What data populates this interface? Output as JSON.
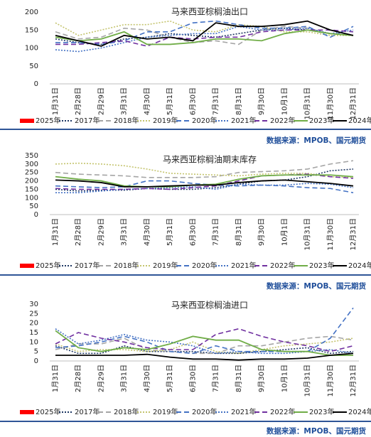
{
  "chart_data": [
    {
      "type": "line",
      "title": "马来西亚棕榈油出口",
      "source": "数据来源：MPOB、国元期货",
      "categories": [
        "1月31日",
        "2月28日",
        "2月29日",
        "3月31日",
        "4月30日",
        "5月31日",
        "6月30日",
        "7月31日",
        "8月31日",
        "9月30日",
        "10月1日",
        "10月31日",
        "11月30日",
        "12月31日"
      ],
      "ylim": [
        0,
        200
      ],
      "yticks": [
        0,
        50,
        100,
        150,
        200
      ],
      "series": [
        {
          "name": "2025年",
          "color": "#ff0000",
          "dash": "solid",
          "values": [
            null,
            null,
            null,
            null,
            null,
            null,
            null,
            null,
            null,
            null,
            null,
            null,
            null,
            null
          ]
        },
        {
          "name": "2017年",
          "color": "#1f3864",
          "dash": "dotted",
          "values": [
            125,
            115,
            110,
            125,
            130,
            140,
            135,
            130,
            140,
            150,
            155,
            150,
            140,
            135
          ]
        },
        {
          "name": "2018年",
          "color": "#a5a5a5",
          "dash": "dashed",
          "values": [
            145,
            125,
            130,
            155,
            150,
            130,
            115,
            120,
            110,
            150,
            160,
            155,
            140,
            135
          ]
        },
        {
          "name": "2019年",
          "color": "#c4c46e",
          "dash": "dotted",
          "values": [
            170,
            135,
            150,
            165,
            165,
            175,
            150,
            145,
            165,
            160,
            145,
            145,
            135,
            135
          ]
        },
        {
          "name": "2020年",
          "color": "#4472c4",
          "dash": "dashed",
          "values": [
            115,
            115,
            110,
            120,
            145,
            145,
            170,
            175,
            165,
            155,
            155,
            160,
            130,
            160
          ]
        },
        {
          "name": "2021年",
          "color": "#4472c4",
          "dash": "dotted",
          "values": [
            95,
            90,
            100,
            115,
            130,
            135,
            140,
            140,
            160,
            150,
            150,
            155,
            140,
            150
          ]
        },
        {
          "name": "2022年",
          "color": "#7030a0",
          "dash": "dashed",
          "values": [
            110,
            110,
            115,
            120,
            105,
            130,
            125,
            130,
            130,
            145,
            150,
            150,
            150,
            145
          ]
        },
        {
          "name": "2023年",
          "color": "#70ad47",
          "dash": "solid",
          "values": [
            130,
            120,
            125,
            145,
            110,
            110,
            115,
            125,
            125,
            120,
            140,
            150,
            140,
            135
          ]
        },
        {
          "name": "2024年",
          "color": "#000000",
          "dash": "solid",
          "values": [
            135,
            120,
            105,
            135,
            125,
            130,
            120,
            170,
            160,
            160,
            165,
            175,
            150,
            135
          ]
        }
      ]
    },
    {
      "type": "line",
      "title": "马来西亚棕榈油期末库存",
      "source": "数据来源：MPOB、国元期货",
      "categories": [
        "1月31日",
        "2月28日",
        "2月29日",
        "3月31日",
        "4月30日",
        "5月31日",
        "6月30日",
        "7月31日",
        "8月31日",
        "9月30日",
        "10月1日",
        "10月31日",
        "11月30日",
        "12月31日"
      ],
      "ylim": [
        0,
        350
      ],
      "yticks": [
        0,
        50,
        100,
        150,
        200,
        250,
        300,
        350
      ],
      "series": [
        {
          "name": "2025年",
          "color": "#ff0000",
          "dash": "solid",
          "values": [
            null,
            null,
            null,
            null,
            null,
            null,
            null,
            null,
            null,
            null,
            null,
            null,
            null,
            null
          ]
        },
        {
          "name": "2017年",
          "color": "#1f3864",
          "dash": "dotted",
          "values": [
            150,
            140,
            145,
            145,
            155,
            150,
            150,
            160,
            180,
            200,
            205,
            225,
            260,
            270
          ]
        },
        {
          "name": "2018年",
          "color": "#a5a5a5",
          "dash": "dashed",
          "values": [
            250,
            240,
            235,
            230,
            220,
            220,
            220,
            225,
            250,
            255,
            260,
            270,
            300,
            320
          ]
        },
        {
          "name": "2019年",
          "color": "#c4c46e",
          "dash": "dotted",
          "values": [
            300,
            305,
            300,
            290,
            270,
            245,
            240,
            235,
            230,
            240,
            245,
            245,
            225,
            220
          ]
        },
        {
          "name": "2020年",
          "color": "#4472c4",
          "dash": "dashed",
          "values": [
            170,
            165,
            160,
            165,
            200,
            200,
            185,
            175,
            170,
            175,
            170,
            160,
            155,
            130
          ]
        },
        {
          "name": "2021年",
          "color": "#4472c4",
          "dash": "dotted",
          "values": [
            130,
            130,
            140,
            150,
            155,
            160,
            165,
            150,
            180,
            175,
            175,
            185,
            180,
            160
          ]
        },
        {
          "name": "2022年",
          "color": "#7030a0",
          "dash": "dashed",
          "values": [
            155,
            150,
            150,
            150,
            155,
            150,
            160,
            170,
            200,
            230,
            235,
            240,
            225,
            215
          ]
        },
        {
          "name": "2023年",
          "color": "#70ad47",
          "dash": "solid",
          "values": [
            225,
            210,
            200,
            170,
            165,
            165,
            175,
            180,
            210,
            230,
            235,
            235,
            235,
            225
          ]
        },
        {
          "name": "2024年",
          "color": "#000000",
          "dash": "solid",
          "values": [
            205,
            200,
            190,
            165,
            165,
            170,
            175,
            175,
            190,
            200,
            205,
            195,
            185,
            170
          ]
        }
      ]
    },
    {
      "type": "line",
      "title": "马来西亚棕榈油进口",
      "source": "数据来源：MPOB、国元期货",
      "categories": [
        "1月31日",
        "2月28日",
        "2月29日",
        "3月31日",
        "4月30日",
        "5月31日",
        "6月30日",
        "7月31日",
        "8月31日",
        "9月30日",
        "10月1日",
        "10月31日",
        "11月30日",
        "12月31日"
      ],
      "ylim": [
        0,
        30
      ],
      "yticks": [
        0,
        5,
        10,
        15,
        20,
        25,
        30
      ],
      "series": [
        {
          "name": "2025年",
          "color": "#ff0000",
          "dash": "solid",
          "values": [
            null,
            null,
            null,
            null,
            null,
            null,
            null,
            null,
            null,
            null,
            null,
            null,
            null,
            null
          ]
        },
        {
          "name": "2017年",
          "color": "#1f3864",
          "dash": "dotted",
          "values": [
            8,
            4,
            4,
            8,
            5,
            5,
            5,
            4,
            4,
            5,
            6,
            7,
            4,
            5
          ]
        },
        {
          "name": "2018年",
          "color": "#a5a5a5",
          "dash": "dashed",
          "values": [
            6,
            9,
            9,
            12,
            6,
            5,
            4,
            4,
            8,
            8,
            10,
            12,
            13,
            11
          ]
        },
        {
          "name": "2019年",
          "color": "#c4c46e",
          "dash": "dotted",
          "values": [
            9,
            5,
            6,
            6,
            5,
            6,
            10,
            5,
            4,
            6,
            8,
            9,
            10,
            12
          ]
        },
        {
          "name": "2020年",
          "color": "#4472c4",
          "dash": "dashed",
          "values": [
            7,
            8,
            10,
            13,
            10,
            5,
            4,
            8,
            5,
            5,
            5,
            5,
            12,
            28
          ]
        },
        {
          "name": "2021年",
          "color": "#4472c4",
          "dash": "dotted",
          "values": [
            17,
            9,
            11,
            14,
            11,
            10,
            8,
            4,
            5,
            4,
            4,
            5,
            6,
            4
          ]
        },
        {
          "name": "2022年",
          "color": "#7030a0",
          "dash": "dashed",
          "values": [
            9,
            15,
            12,
            10,
            7,
            6,
            6,
            14,
            17,
            13,
            10,
            8,
            5,
            8
          ]
        },
        {
          "name": "2023年",
          "color": "#70ad47",
          "dash": "solid",
          "values": [
            16,
            7,
            5,
            7,
            6,
            9,
            13,
            11,
            11,
            6,
            5,
            5,
            3,
            3
          ]
        },
        {
          "name": "2024年",
          "color": "#000000",
          "dash": "solid",
          "values": [
            3,
            3,
            3,
            3,
            3.5,
            2,
            1,
            1,
            0.5,
            1,
            1,
            1.5,
            3,
            4
          ]
        }
      ]
    }
  ]
}
